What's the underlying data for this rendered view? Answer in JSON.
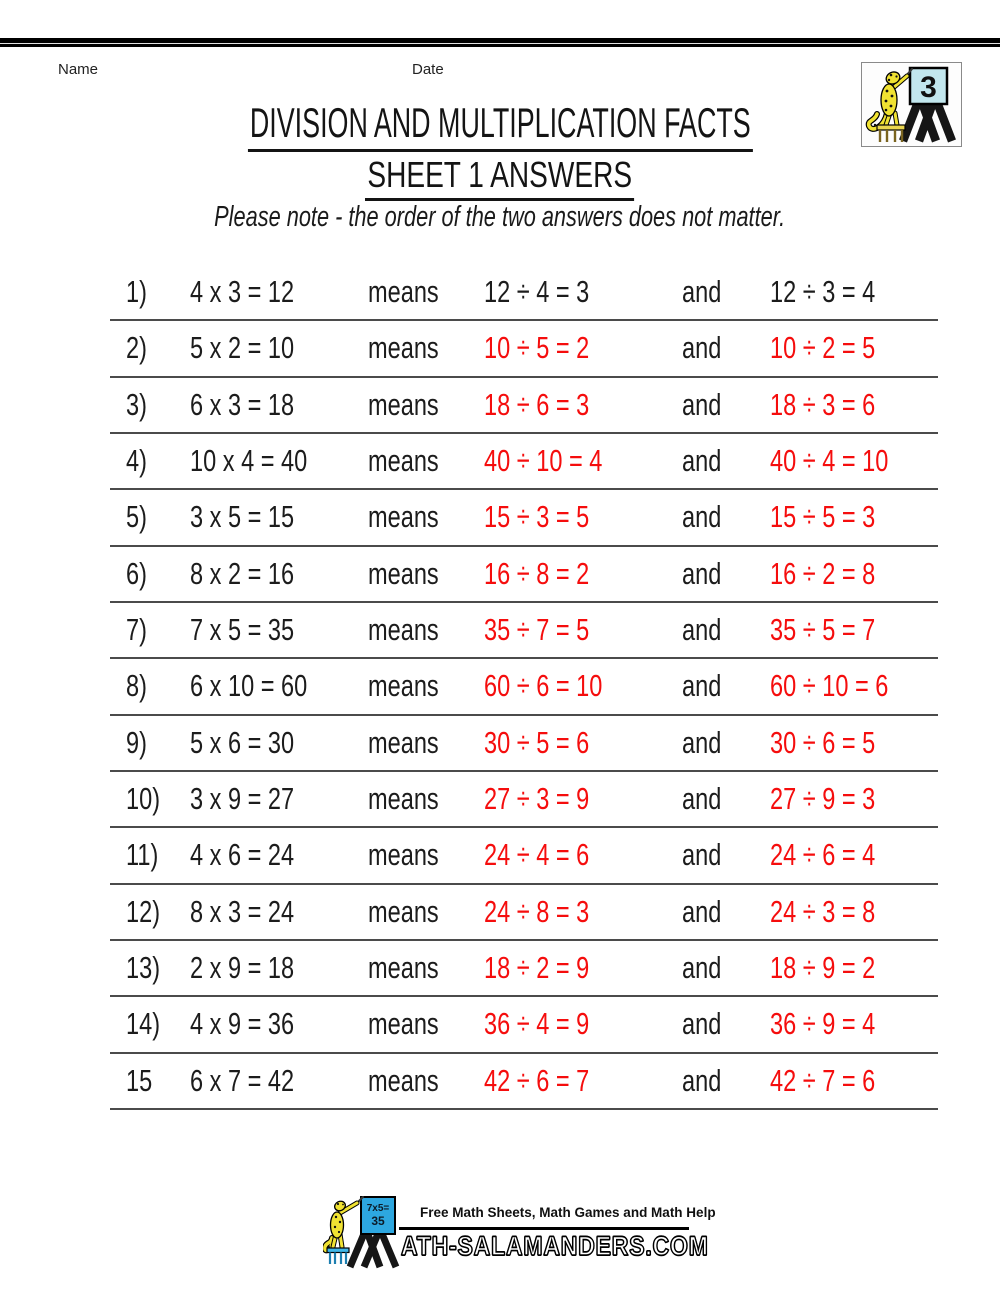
{
  "header": {
    "name_label": "Name",
    "date_label": "Date",
    "logo_number": "3"
  },
  "title": "DIVISION AND MULTIPLICATION FACTS",
  "subtitle": "SHEET 1 ANSWERS",
  "note": "Please note - the order of the two answers does not matter.",
  "labels": {
    "means": "means",
    "and": "and"
  },
  "rows": [
    {
      "n": "1)",
      "fact": "4 x 3 = 12",
      "div1": "12 ÷ 4 = 3",
      "div2": "12 ÷ 3 = 4",
      "answers_red": false
    },
    {
      "n": "2)",
      "fact": "5 x 2 = 10",
      "div1": "10 ÷ 5 = 2",
      "div2": "10 ÷ 2 = 5",
      "answers_red": true
    },
    {
      "n": "3)",
      "fact": "6 x 3 = 18",
      "div1": "18 ÷ 6 = 3",
      "div2": "18 ÷ 3 = 6",
      "answers_red": true
    },
    {
      "n": "4)",
      "fact": "10 x 4 = 40",
      "div1": "40 ÷ 10 = 4",
      "div2": "40 ÷ 4 = 10",
      "answers_red": true
    },
    {
      "n": "5)",
      "fact": "3 x 5 = 15",
      "div1": "15 ÷ 3 = 5",
      "div2": "15 ÷ 5 = 3",
      "answers_red": true
    },
    {
      "n": "6)",
      "fact": "8 x 2 = 16",
      "div1": "16 ÷ 8 = 2",
      "div2": "16 ÷ 2 = 8",
      "answers_red": true
    },
    {
      "n": "7)",
      "fact": "7 x 5 = 35",
      "div1": "35 ÷ 7 = 5",
      "div2": "35 ÷ 5 = 7",
      "answers_red": true
    },
    {
      "n": "8)",
      "fact": "6 x 10 = 60",
      "div1": "60 ÷ 6 = 10",
      "div2": "60 ÷ 10 = 6",
      "answers_red": true
    },
    {
      "n": "9)",
      "fact": "5 x 6 = 30",
      "div1": "30 ÷ 5 = 6",
      "div2": "30 ÷ 6 = 5",
      "answers_red": true
    },
    {
      "n": "10)",
      "fact": "3 x 9 = 27",
      "div1": "27 ÷ 3 = 9",
      "div2": "27 ÷ 9 = 3",
      "answers_red": true
    },
    {
      "n": "11)",
      "fact": "4 x 6 = 24",
      "div1": "24 ÷ 4 = 6",
      "div2": "24 ÷ 6 = 4",
      "answers_red": true
    },
    {
      "n": "12)",
      "fact": "8 x 3 = 24",
      "div1": "24 ÷ 8 = 3",
      "div2": "24 ÷ 3 = 8",
      "answers_red": true
    },
    {
      "n": "13)",
      "fact": "2 x 9 = 18",
      "div1": "18 ÷ 2 = 9",
      "div2": "18 ÷ 9 = 2",
      "answers_red": true
    },
    {
      "n": "14)",
      "fact": "4 x 9 = 36",
      "div1": "36 ÷ 4 = 9",
      "div2": "36 ÷ 9 = 4",
      "answers_red": true
    },
    {
      "n": "15",
      "fact": "6 x 7 = 42",
      "div1": "42 ÷ 6 = 7",
      "div2": "42 ÷ 7 = 6",
      "answers_red": true
    }
  ],
  "footer": {
    "tagline": "Free Math Sheets, Math Games and Math Help",
    "brand": "ATH-SALAMANDERS.COM",
    "board_line1": "7x5=",
    "board_line2": "35"
  },
  "colors": {
    "answer_red": "#f50d0d",
    "ink": "#1c1c1c",
    "rule": "#4b4b4b",
    "salamander_yellow": "#f0e232",
    "card_blue": "#c2e7ee",
    "board_blue": "#2da7e0"
  }
}
